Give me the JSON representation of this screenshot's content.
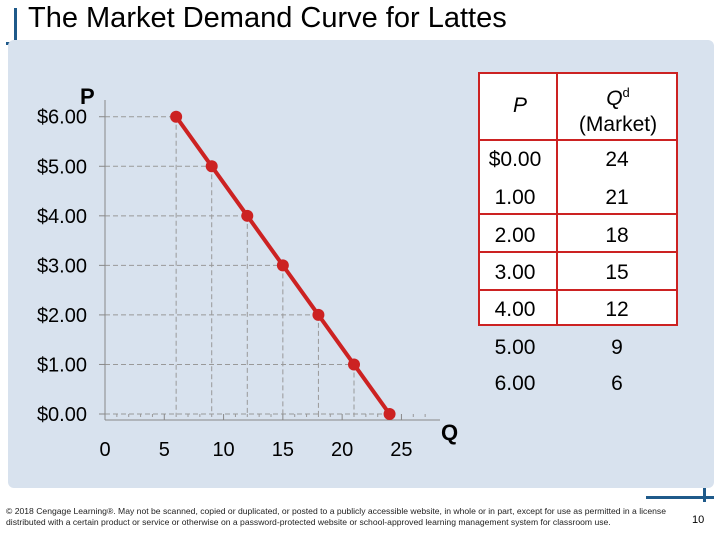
{
  "slide": {
    "title": "The Market Demand Curve for Lattes",
    "copyright": "© 2018 Cengage Learning®. May not be scanned, copied or duplicated, or posted to a publicly accessible website, in whole or in part, except for use as permitted in a license distributed with a certain product or service or otherwise on a password-protected website or school-approved learning management system for classroom use.",
    "page_number": "10"
  },
  "chart_data": {
    "type": "line",
    "title": "",
    "xlabel": "Q",
    "ylabel": "P",
    "xlim": [
      0,
      28
    ],
    "ylim": [
      0,
      6.6
    ],
    "x_ticks": [
      0,
      5,
      10,
      15,
      20,
      25
    ],
    "x_tick_labels": [
      "0",
      "5",
      "10",
      "15",
      "20",
      "25"
    ],
    "y_ticks": [
      0,
      1,
      2,
      3,
      4,
      5,
      6
    ],
    "y_tick_labels": [
      "$0.00",
      "$1.00",
      "$2.00",
      "$3.00",
      "$4.00",
      "$5.00",
      "$6.00"
    ],
    "grid": false,
    "line_color": "#cc2222",
    "point_color": "#cc2222",
    "series": [
      {
        "points": [
          {
            "x": 6,
            "y": 6
          },
          {
            "x": 9,
            "y": 5
          },
          {
            "x": 12,
            "y": 4
          },
          {
            "x": 15,
            "y": 3
          },
          {
            "x": 18,
            "y": 2
          },
          {
            "x": 21,
            "y": 1
          },
          {
            "x": 24,
            "y": 0
          }
        ]
      }
    ]
  },
  "table": {
    "header_p": "P",
    "header_q": "Q",
    "header_q_sup": "d",
    "header_q_sub": "(Market)",
    "rows": [
      {
        "p": "$0.00",
        "q": "24"
      },
      {
        "p": "1.00",
        "q": "21"
      },
      {
        "p": "2.00",
        "q": "18"
      },
      {
        "p": "3.00",
        "q": "15"
      },
      {
        "p": "4.00",
        "q": "12"
      },
      {
        "p": "5.00",
        "q": "9"
      },
      {
        "p": "6.00",
        "q": "6"
      }
    ],
    "border_color": "#cc2222"
  }
}
